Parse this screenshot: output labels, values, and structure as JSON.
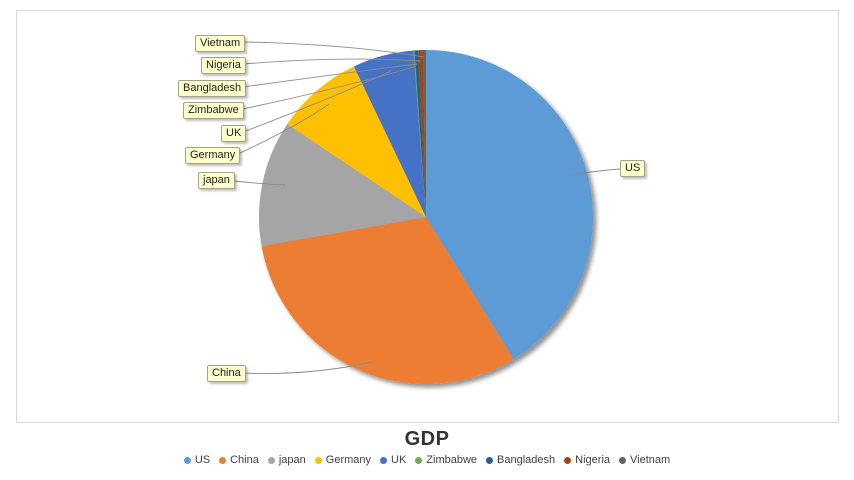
{
  "chart_data": {
    "type": "pie",
    "title": "GDP",
    "categories": [
      "US",
      "China",
      "japan",
      "Germany",
      "UK",
      "Zimbabwe",
      "Bangladesh",
      "Nigeria",
      "Vietnam"
    ],
    "values": [
      41.2,
      31.0,
      12.2,
      8.5,
      5.9,
      0.1,
      0.35,
      0.45,
      0.3
    ],
    "values_unit": "% share of total, estimated from slice angles (no numeric labels are shown in the chart)",
    "colors": [
      "#5B9BD5",
      "#ED7D31",
      "#A5A5A5",
      "#FFC000",
      "#4472C4",
      "#70AD47",
      "#255E91",
      "#9E480E",
      "#636363"
    ],
    "start_angle_deg": 0,
    "direction": "clockwise",
    "legend_position": "bottom",
    "data_labels": "category names in yellow callout boxes connected by gray leader lines"
  },
  "theme": {
    "background": "#FFFFFF",
    "plot_border_color": "#D9D9D9",
    "leader_line_color": "#8C8C8C",
    "callout_bg": "#FFFFCC",
    "callout_border": "#A3A38A",
    "title_color": "#333333",
    "legend_text_color": "#404040",
    "pie_shadow_color": "#000000"
  }
}
